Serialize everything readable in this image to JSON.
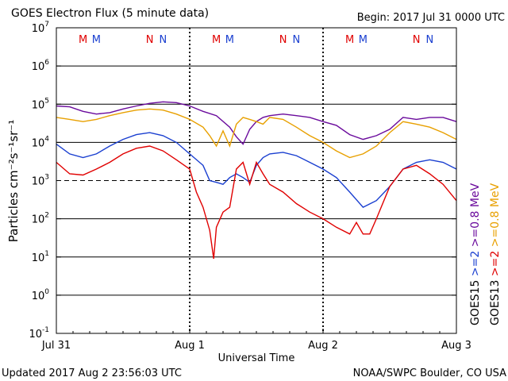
{
  "title": "GOES Electron Flux (5 minute data)",
  "begin": "Begin: 2017 Jul 31 0000 UTC",
  "updated": "Updated 2017 Aug  2 23:56:03 UTC",
  "credit": "NOAA/SWPC Boulder, CO USA",
  "colors": {
    "goes15_ge08": "#6a0a9c",
    "goes13_ge08": "#e8a000",
    "goes15_ge2": "#1a3fd0",
    "goes13_ge2": "#e00000"
  },
  "right_labels": [
    {
      "text": "GOES15",
      "parts": [
        ">=2",
        ">=0.8 MeV"
      ],
      "colors": [
        "#1a3fd0",
        "#6a0a9c"
      ]
    },
    {
      "text": "GOES13",
      "parts": [
        ">=2",
        ">=0.8 MeV"
      ],
      "colors": [
        "#e00000",
        "#e8a000"
      ]
    }
  ],
  "markers": [
    {
      "label": "M",
      "day": 0.2,
      "color": "#e00000"
    },
    {
      "label": "M",
      "day": 0.3,
      "color": "#1a3fd0"
    },
    {
      "label": "N",
      "day": 0.7,
      "color": "#e00000"
    },
    {
      "label": "N",
      "day": 0.8,
      "color": "#1a3fd0"
    },
    {
      "label": "M",
      "day": 1.2,
      "color": "#e00000"
    },
    {
      "label": "M",
      "day": 1.3,
      "color": "#1a3fd0"
    },
    {
      "label": "N",
      "day": 1.7,
      "color": "#e00000"
    },
    {
      "label": "N",
      "day": 1.8,
      "color": "#1a3fd0"
    },
    {
      "label": "M",
      "day": 2.2,
      "color": "#e00000"
    },
    {
      "label": "M",
      "day": 2.3,
      "color": "#1a3fd0"
    },
    {
      "label": "N",
      "day": 2.7,
      "color": "#e00000"
    },
    {
      "label": "N",
      "day": 2.8,
      "color": "#1a3fd0"
    }
  ],
  "chart_data": {
    "type": "line",
    "xlabel": "Universal Time",
    "ylabel": "Particles cm⁻²s⁻¹sr⁻¹",
    "x_unit": "days since 2017 Jul 31 0000 UTC",
    "xlim": [
      0,
      3
    ],
    "x_ticks": [
      {
        "day": 0,
        "label": "Jul 31"
      },
      {
        "day": 1,
        "label": "Aug 1"
      },
      {
        "day": 2,
        "label": "Aug 2"
      },
      {
        "day": 3,
        "label": "Aug 3"
      }
    ],
    "ylog": true,
    "ylim": [
      0.1,
      10000000
    ],
    "y_ticks": [
      {
        "v": 0.1,
        "base": "10",
        "exp": "-1"
      },
      {
        "v": 1,
        "base": "10",
        "exp": "0"
      },
      {
        "v": 10,
        "base": "10",
        "exp": "1"
      },
      {
        "v": 100,
        "base": "10",
        "exp": "2"
      },
      {
        "v": 1000,
        "base": "10",
        "exp": "3"
      },
      {
        "v": 10000,
        "base": "10",
        "exp": "4"
      },
      {
        "v": 100000,
        "base": "10",
        "exp": "5"
      },
      {
        "v": 1000000,
        "base": "10",
        "exp": "6"
      },
      {
        "v": 10000000,
        "base": "10",
        "exp": "7"
      }
    ],
    "solid_gridlines": [
      1,
      10,
      100,
      10000,
      100000,
      1000000
    ],
    "dashed_gridlines": [
      1000
    ],
    "series": [
      {
        "name": "GOES15 >=0.8 MeV",
        "color": "#6a0a9c",
        "x": [
          0,
          0.1,
          0.2,
          0.3,
          0.4,
          0.5,
          0.6,
          0.7,
          0.8,
          0.9,
          1.0,
          1.1,
          1.2,
          1.3,
          1.35,
          1.4,
          1.45,
          1.5,
          1.55,
          1.6,
          1.7,
          1.8,
          1.9,
          2.0,
          2.1,
          2.2,
          2.3,
          2.4,
          2.5,
          2.6,
          2.7,
          2.8,
          2.9,
          3.0
        ],
        "y": [
          90000,
          85000,
          65000,
          55000,
          60000,
          75000,
          90000,
          105000,
          115000,
          110000,
          90000,
          65000,
          50000,
          25000,
          14000,
          9000,
          22000,
          35000,
          45000,
          50000,
          55000,
          50000,
          45000,
          35000,
          28000,
          16000,
          12000,
          15000,
          22000,
          45000,
          40000,
          45000,
          45000,
          35000
        ]
      },
      {
        "name": "GOES13 >=0.8 MeV",
        "color": "#e8a000",
        "x": [
          0,
          0.1,
          0.2,
          0.3,
          0.4,
          0.5,
          0.6,
          0.7,
          0.8,
          0.9,
          1.0,
          1.1,
          1.15,
          1.2,
          1.25,
          1.3,
          1.35,
          1.4,
          1.45,
          1.5,
          1.55,
          1.6,
          1.7,
          1.8,
          1.9,
          2.0,
          2.1,
          2.2,
          2.3,
          2.4,
          2.5,
          2.6,
          2.7,
          2.8,
          2.9,
          3.0
        ],
        "y": [
          45000,
          40000,
          35000,
          40000,
          50000,
          60000,
          70000,
          75000,
          70000,
          55000,
          40000,
          25000,
          15000,
          8000,
          20000,
          8000,
          30000,
          45000,
          40000,
          35000,
          30000,
          45000,
          40000,
          25000,
          15000,
          10000,
          6000,
          4000,
          5000,
          8000,
          18000,
          35000,
          30000,
          25000,
          18000,
          12000
        ]
      },
      {
        "name": "GOES15 >=2 MeV",
        "color": "#1a3fd0",
        "x": [
          0,
          0.1,
          0.2,
          0.3,
          0.4,
          0.5,
          0.6,
          0.7,
          0.8,
          0.9,
          1.0,
          1.1,
          1.15,
          1.2,
          1.25,
          1.3,
          1.35,
          1.4,
          1.45,
          1.5,
          1.55,
          1.6,
          1.7,
          1.8,
          1.9,
          2.0,
          2.1,
          2.2,
          2.3,
          2.4,
          2.5,
          2.6,
          2.7,
          2.8,
          2.9,
          3.0
        ],
        "y": [
          9000,
          5000,
          4000,
          5000,
          8000,
          12000,
          16000,
          18000,
          15000,
          10000,
          5000,
          2500,
          1000,
          900,
          800,
          1200,
          1500,
          1200,
          900,
          2500,
          4000,
          5000,
          5500,
          4500,
          3000,
          2000,
          1200,
          500,
          200,
          300,
          700,
          2000,
          3000,
          3500,
          3000,
          2000
        ]
      },
      {
        "name": "GOES13 >=2 MeV",
        "color": "#e00000",
        "x": [
          0,
          0.1,
          0.2,
          0.3,
          0.4,
          0.5,
          0.6,
          0.7,
          0.8,
          0.9,
          1.0,
          1.05,
          1.1,
          1.15,
          1.18,
          1.2,
          1.25,
          1.3,
          1.35,
          1.4,
          1.45,
          1.5,
          1.55,
          1.6,
          1.7,
          1.8,
          1.9,
          2.0,
          2.1,
          2.2,
          2.25,
          2.3,
          2.35,
          2.4,
          2.5,
          2.6,
          2.7,
          2.8,
          2.9,
          3.0
        ],
        "y": [
          3000,
          1500,
          1400,
          2000,
          3000,
          5000,
          7000,
          8000,
          6000,
          3500,
          2000,
          500,
          200,
          50,
          9,
          60,
          150,
          200,
          2000,
          3000,
          800,
          3000,
          1500,
          800,
          500,
          250,
          150,
          100,
          60,
          40,
          80,
          40,
          40,
          100,
          700,
          2000,
          2500,
          1500,
          800,
          300
        ]
      }
    ]
  }
}
